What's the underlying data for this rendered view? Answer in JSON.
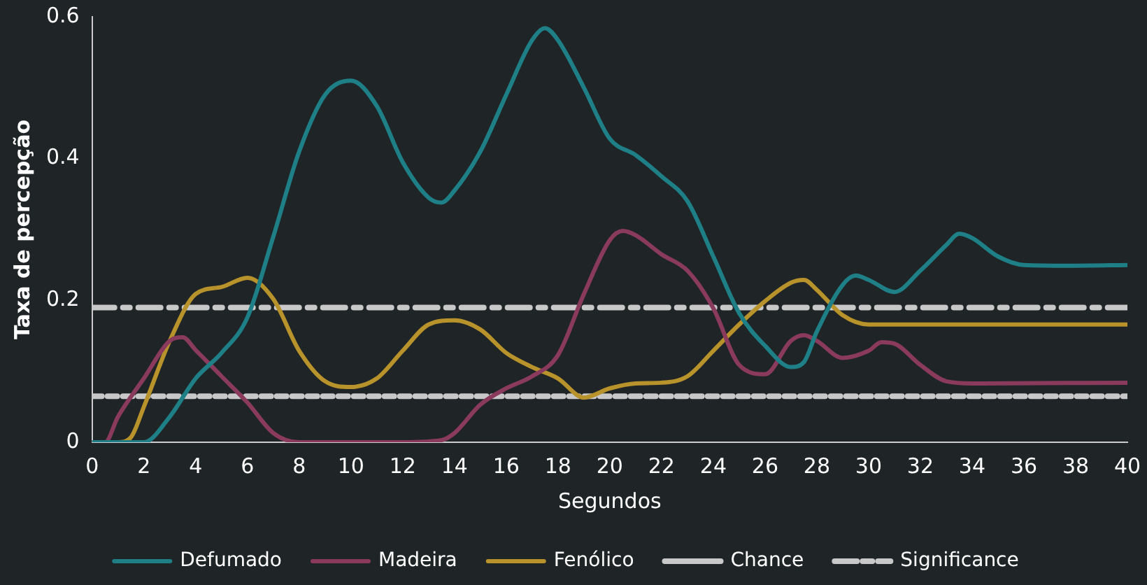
{
  "chart_data": {
    "type": "line",
    "xlabel": "Segundos",
    "ylabel": "Taxa de percepção",
    "xlim": [
      0,
      40
    ],
    "ylim": [
      0,
      0.6
    ],
    "xticks": [
      0,
      2,
      4,
      6,
      8,
      10,
      12,
      14,
      16,
      18,
      20,
      22,
      24,
      26,
      28,
      30,
      32,
      34,
      36,
      38,
      40
    ],
    "yticks": [
      0,
      0.2,
      0.4,
      0.6
    ],
    "grid": false,
    "legend": "bottom",
    "marker": "none",
    "series": [
      {
        "name": "Defumado",
        "color": "#1f7f86",
        "x": [
          0,
          2,
          3,
          4,
          5,
          6,
          7,
          8,
          9,
          10,
          11,
          12,
          13,
          13.5,
          14,
          15,
          16,
          17,
          17.5,
          18,
          19,
          20,
          21,
          22,
          23,
          24,
          25,
          26,
          27,
          27.5,
          28,
          29,
          29.5,
          30,
          31,
          32,
          33,
          33.5,
          34,
          35,
          36,
          38,
          40
        ],
        "values": [
          0,
          0,
          0.036,
          0.09,
          0.126,
          0.176,
          0.29,
          0.41,
          0.49,
          0.51,
          0.474,
          0.395,
          0.345,
          0.338,
          0.355,
          0.41,
          0.49,
          0.567,
          0.584,
          0.567,
          0.5,
          0.428,
          0.405,
          0.375,
          0.34,
          0.262,
          0.182,
          0.136,
          0.106,
          0.113,
          0.156,
          0.222,
          0.235,
          0.229,
          0.212,
          0.242,
          0.278,
          0.294,
          0.288,
          0.262,
          0.25,
          0.249,
          0.25
        ]
      },
      {
        "name": "Madeira",
        "color": "#8a3a5c",
        "x": [
          0,
          0.5,
          1,
          2,
          3,
          3.5,
          4,
          5,
          6,
          7,
          8,
          12,
          13.5,
          14,
          15,
          16,
          17,
          18,
          19,
          20,
          20.5,
          21,
          22,
          23,
          24,
          25,
          26,
          27,
          27.5,
          28,
          29,
          30,
          30.5,
          31,
          32,
          33,
          34,
          40
        ],
        "values": [
          0,
          0,
          0.036,
          0.09,
          0.143,
          0.148,
          0.13,
          0.093,
          0.056,
          0.013,
          0,
          0,
          0.003,
          0.013,
          0.053,
          0.076,
          0.093,
          0.123,
          0.209,
          0.285,
          0.298,
          0.292,
          0.265,
          0.242,
          0.189,
          0.109,
          0.096,
          0.143,
          0.151,
          0.143,
          0.119,
          0.129,
          0.141,
          0.139,
          0.109,
          0.086,
          0.083,
          0.084
        ]
      },
      {
        "name": "Fenólico",
        "color": "#b8922a",
        "x": [
          0,
          1,
          1.5,
          2,
          3,
          4,
          5,
          6,
          7,
          8,
          9,
          10,
          11,
          12,
          13,
          14,
          15,
          16,
          17,
          18,
          19,
          20,
          21,
          22,
          23,
          24,
          25,
          26,
          27,
          27.5,
          28,
          29,
          30,
          31,
          40
        ],
        "values": [
          0,
          0,
          0.007,
          0.05,
          0.143,
          0.209,
          0.219,
          0.232,
          0.202,
          0.129,
          0.086,
          0.078,
          0.09,
          0.129,
          0.166,
          0.172,
          0.159,
          0.126,
          0.106,
          0.09,
          0.063,
          0.076,
          0.083,
          0.084,
          0.093,
          0.129,
          0.166,
          0.199,
          0.225,
          0.229,
          0.215,
          0.179,
          0.166,
          0.166,
          0.166
        ]
      },
      {
        "name": "Chance",
        "color": "#c8c8c8",
        "line_style": "dotted",
        "x": [
          0,
          40
        ],
        "values": [
          0.065,
          0.065
        ]
      },
      {
        "name": "Significance",
        "color": "#c8c8c8",
        "line_style": "dashed",
        "x": [
          0,
          40
        ],
        "values": [
          0.19,
          0.19
        ]
      }
    ]
  }
}
